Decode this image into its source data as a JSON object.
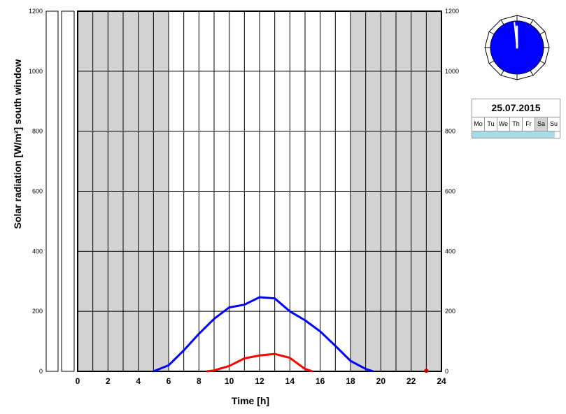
{
  "chart_data": {
    "type": "line",
    "xlabel": "Time [h]",
    "ylabel": "Solar radiation [W/m²]  south window",
    "xlim": [
      0,
      24
    ],
    "ylim": [
      0,
      1200
    ],
    "x_ticks": [
      "0",
      "2",
      "4",
      "6",
      "8",
      "10",
      "12",
      "14",
      "16",
      "18",
      "20",
      "22",
      "24"
    ],
    "y_ticks": [
      "0",
      "200",
      "400",
      "600",
      "800",
      "1000",
      "1200"
    ],
    "grid": true,
    "shaded_periods": [
      [
        0,
        6
      ],
      [
        18,
        24
      ]
    ],
    "series": [
      {
        "color": "#0000ff",
        "x": [
          5,
          6,
          7,
          8,
          9,
          10,
          11,
          12,
          13,
          14,
          15,
          16,
          17,
          18,
          19,
          19.5
        ],
        "values": [
          0,
          20,
          70,
          125,
          175,
          213,
          222,
          247,
          243,
          200,
          170,
          133,
          85,
          35,
          8,
          0
        ]
      },
      {
        "color": "#ff0000",
        "x": [
          8.5,
          9,
          10,
          11,
          12,
          13,
          14,
          15,
          15.5
        ],
        "values": [
          0,
          3,
          18,
          43,
          53,
          58,
          45,
          8,
          0
        ]
      }
    ],
    "marker": {
      "x": 23,
      "value": 2,
      "color": "#cc0000"
    }
  },
  "calendar": {
    "date": "25.07.2015",
    "days": [
      "Mo",
      "Tu",
      "We",
      "Th",
      "Fr",
      "Sa",
      "Su"
    ],
    "active_day": "Sa",
    "progress": 0.94,
    "progress_color": "#a8dbe6"
  },
  "clock": {
    "hour": 11,
    "minute": 59,
    "face_color": "#0000ff"
  }
}
